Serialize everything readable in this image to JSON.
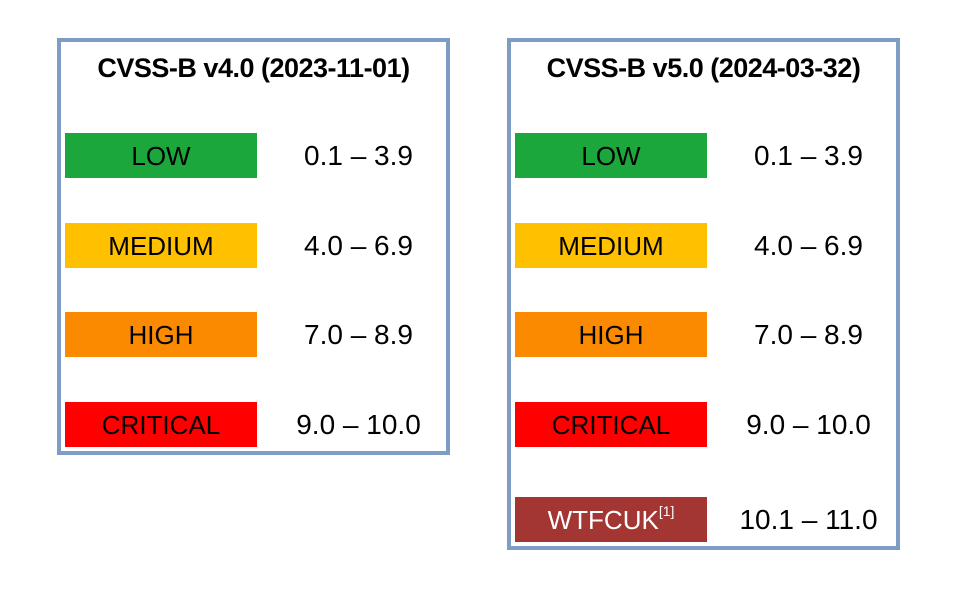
{
  "style": {
    "background": "#FFFFFF",
    "border_color": "#7F9DC4",
    "text_color": "#000000"
  },
  "panels": [
    {
      "title": "CVSS-B v4.0 (2023-11-01)",
      "rows": [
        {
          "label": "LOW",
          "range": "0.1 – 3.9",
          "color": "#1CA73C",
          "label_color": "#000000"
        },
        {
          "label": "MEDIUM",
          "range": "4.0 – 6.9",
          "color": "#FFC000",
          "label_color": "#000000"
        },
        {
          "label": "HIGH",
          "range": "7.0 – 8.9",
          "color": "#FC8A00",
          "label_color": "#000000"
        },
        {
          "label": "CRITICAL",
          "range": "9.0 – 10.0",
          "color": "#FE0000",
          "label_color": "#000000"
        }
      ]
    },
    {
      "title": "CVSS-B v5.0 (2024-03-32)",
      "rows": [
        {
          "label": "LOW",
          "range": "0.1 – 3.9",
          "color": "#1CA73C",
          "label_color": "#000000"
        },
        {
          "label": "MEDIUM",
          "range": "4.0 – 6.9",
          "color": "#FFC000",
          "label_color": "#000000"
        },
        {
          "label": "HIGH",
          "range": "7.0 – 8.9",
          "color": "#FC8A00",
          "label_color": "#000000"
        },
        {
          "label": "CRITICAL",
          "range": "9.0 – 10.0",
          "color": "#FE0000",
          "label_color": "#000000"
        },
        {
          "label": "WTFCUK",
          "label_sup": "[1]",
          "range": "10.1 – 11.0",
          "color": "#A33532",
          "label_color": "#FFFFFF"
        }
      ]
    }
  ]
}
